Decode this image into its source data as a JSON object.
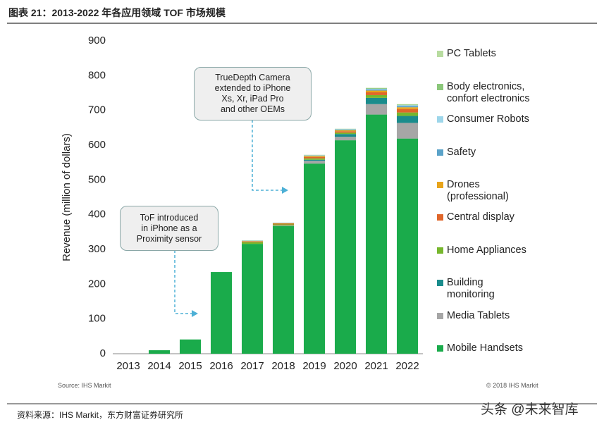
{
  "chart_data": {
    "type": "stacked_bar",
    "title": "图表 21：2013-2022 年各应用领域 TOF 市场规模",
    "ylabel": "Revenue (million of dollars)",
    "source_note": "Source: IHS Markit",
    "copyright": "© 2018 IHS Markit",
    "footer": "资料来源：IHS Markit，东方财富证券研究所",
    "watermark": "头条 @未来智库",
    "annotations": [
      "TrueDepth Camera\nextended to iPhone\nXs, Xr, iPad Pro\nand other OEMs",
      "ToF introduced\nin iPhone as a\nProximity sensor"
    ],
    "categories": [
      "2013",
      "2014",
      "2015",
      "2016",
      "2017",
      "2018",
      "2019",
      "2020",
      "2021",
      "2022"
    ],
    "series": [
      {
        "name": "Mobile Handsets",
        "color": "#1aab4b",
        "values": [
          0,
          10,
          41,
          235,
          316,
          367,
          547,
          614,
          688,
          619
        ]
      },
      {
        "name": "Media Tablets",
        "color": "#a6a6a6",
        "values": [
          0,
          0,
          0,
          0,
          0,
          2,
          8,
          10,
          30,
          45
        ]
      },
      {
        "name": "Building\nmonitoring",
        "color": "#1a8c8c",
        "values": [
          0,
          0,
          0,
          0,
          0,
          0,
          3,
          8,
          18,
          20
        ]
      },
      {
        "name": "Home Appliances",
        "color": "#77b72d",
        "values": [
          0,
          0,
          0,
          0,
          5,
          3,
          4,
          4,
          8,
          10
        ]
      },
      {
        "name": "Central display",
        "color": "#e0662a",
        "values": [
          0,
          0,
          0,
          0,
          2,
          2,
          4,
          4,
          8,
          10
        ]
      },
      {
        "name": "Drones\n(professional)",
        "color": "#e8a41a",
        "values": [
          0,
          0,
          0,
          0,
          1,
          1,
          3,
          3,
          5,
          5
        ]
      },
      {
        "name": "Safety",
        "color": "#5ba3c9",
        "values": [
          0,
          0,
          0,
          0,
          1,
          1,
          1,
          2,
          3,
          4
        ]
      },
      {
        "name": "Consumer Robots",
        "color": "#9dd6ea",
        "values": [
          0,
          0,
          0,
          0,
          0,
          0,
          1,
          1,
          2,
          2
        ]
      },
      {
        "name": "Body electronics,\nconfort electronics",
        "color": "#8bc77a",
        "values": [
          0,
          0,
          0,
          0,
          0,
          0,
          1,
          1,
          2,
          2
        ]
      },
      {
        "name": "PC Tablets",
        "color": "#b8dca0",
        "values": [
          0,
          0,
          0,
          0,
          1,
          1,
          0,
          0,
          1,
          1
        ]
      }
    ],
    "ylim": [
      0,
      900
    ],
    "yticks": [
      0,
      100,
      200,
      300,
      400,
      500,
      600,
      700,
      800,
      900
    ],
    "grid": false
  }
}
